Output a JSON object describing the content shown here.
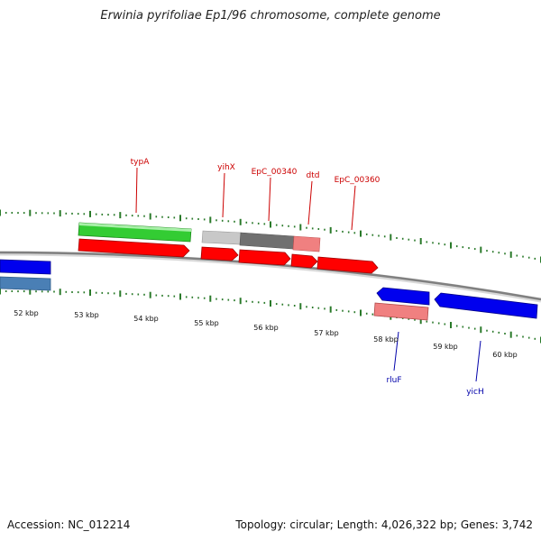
{
  "header": {
    "title": "Erwinia pyrifoliae Ep1/96 chromosome, complete genome"
  },
  "footer": {
    "accession": "Accession: NC_012214",
    "summary": "Topology: circular; Length: 4,026,322 bp; Genes: 3,742"
  },
  "colors": {
    "label_top": "#cc0000",
    "label_bottom": "#0000aa",
    "backbone": "#808080",
    "tick": "#2a7a2a",
    "green": "#33cc33",
    "red": "#ff0000",
    "blue": "#0000ee",
    "steel": "#4a7fb5",
    "lightgray": "#c8c8c8",
    "darkgray": "#707070",
    "pink": "#f08080"
  },
  "scale": {
    "unit": "kbp",
    "labels": [
      "52 kbp",
      "53 kbp",
      "54 kbp",
      "55 kbp",
      "56 kbp",
      "57 kbp",
      "58 kbp",
      "59 kbp",
      "60 kbp"
    ]
  },
  "labels_top": [
    "typA",
    "yihX",
    "EpC_00340",
    "dtd",
    "EpC_00360"
  ],
  "labels_bottom": [
    "rluF",
    "yicH"
  ]
}
